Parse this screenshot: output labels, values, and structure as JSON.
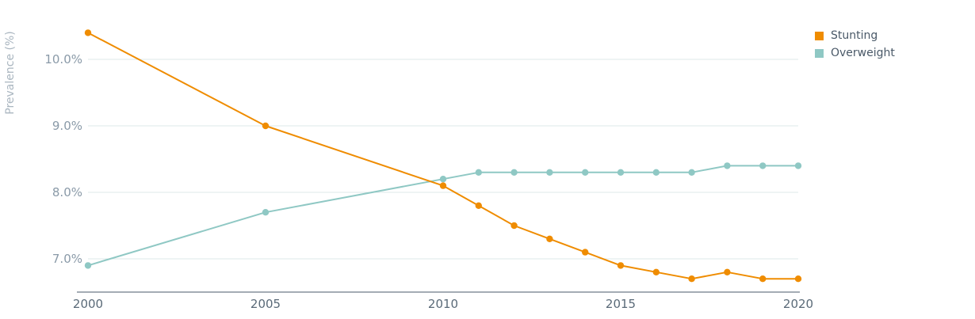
{
  "chart_data": {
    "type": "line",
    "title": "",
    "xlabel": "",
    "ylabel": "Prevalence (%)",
    "x_ticks": [
      "2000",
      "2005",
      "2010",
      "2015",
      "2020"
    ],
    "y_ticks": [
      "7.0%",
      "8.0%",
      "9.0%",
      "10.0%"
    ],
    "xlim": [
      2000,
      2020
    ],
    "ylim": [
      6.5,
      10.5
    ],
    "grid": "horizontal",
    "legend_position": "top-right",
    "series": [
      {
        "name": "Stunting",
        "color": "#ef8c00",
        "x": [
          2000,
          2005,
          2010,
          2011,
          2012,
          2013,
          2014,
          2015,
          2016,
          2017,
          2018,
          2019,
          2020
        ],
        "values": [
          10.4,
          9.0,
          8.1,
          7.8,
          7.5,
          7.3,
          7.1,
          6.9,
          6.8,
          6.7,
          6.8,
          6.7,
          6.7
        ]
      },
      {
        "name": "Overweight",
        "color": "#8fc8c4",
        "x": [
          2000,
          2005,
          2010,
          2011,
          2012,
          2013,
          2014,
          2015,
          2016,
          2017,
          2018,
          2019,
          2020
        ],
        "values": [
          6.9,
          7.7,
          8.2,
          8.3,
          8.3,
          8.3,
          8.3,
          8.3,
          8.3,
          8.3,
          8.4,
          8.4,
          8.4
        ]
      }
    ]
  }
}
